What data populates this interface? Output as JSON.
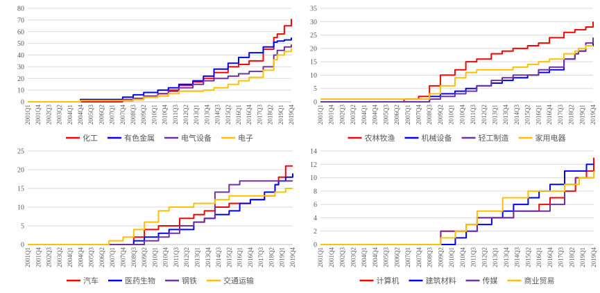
{
  "x_labels": [
    "2001Q1",
    "2001Q4",
    "2002Q3",
    "2003Q2",
    "2004Q1",
    "2004Q4",
    "2005Q3",
    "2006Q2",
    "2007Q1",
    "2007Q4",
    "2008Q3",
    "2009Q2",
    "2010Q1",
    "2010Q4",
    "2011Q3",
    "2012Q2",
    "2013Q1",
    "2013Q4",
    "2014Q3",
    "2015Q2",
    "2016Q1",
    "2016Q4",
    "2017Q3",
    "2018Q2",
    "2019Q1",
    "2019Q4"
  ],
  "chart_data": [
    {
      "type": "line",
      "ylim": [
        0,
        80
      ],
      "yticks": [
        0,
        10,
        20,
        30,
        40,
        50,
        60,
        70,
        80
      ],
      "x": [
        0,
        15,
        20,
        23,
        27,
        30,
        33,
        37,
        40,
        43,
        47,
        50,
        53,
        57,
        60,
        63,
        67,
        70,
        71,
        73,
        75
      ],
      "series": [
        {
          "name": "化工",
          "color": "#ff0000",
          "values": [
            0,
            0,
            0,
            0,
            1,
            2,
            4,
            7,
            10,
            14,
            17,
            20,
            25,
            30,
            32,
            35,
            45,
            55,
            58,
            65,
            71
          ]
        },
        {
          "name": "有色金属",
          "color": "#0000ff",
          "values": [
            0,
            2,
            2,
            2,
            4,
            6,
            8,
            10,
            12,
            15,
            18,
            22,
            28,
            33,
            38,
            42,
            47,
            51,
            52,
            53,
            55
          ]
        },
        {
          "name": "电气设备",
          "color": "#7030a0",
          "values": [
            0,
            1,
            1,
            1,
            2,
            3,
            5,
            7,
            9,
            12,
            15,
            18,
            20,
            22,
            24,
            26,
            30,
            40,
            44,
            47,
            49
          ]
        },
        {
          "name": "电子",
          "color": "#ffc000",
          "values": [
            0,
            1,
            1,
            1,
            1,
            2,
            4,
            5,
            7,
            9,
            9,
            10,
            12,
            15,
            18,
            21,
            27,
            36,
            40,
            43,
            46
          ]
        }
      ]
    },
    {
      "type": "line",
      "ylim": [
        0,
        35
      ],
      "yticks": [
        0,
        5,
        10,
        15,
        20,
        25,
        30,
        35
      ],
      "x": [
        0,
        23,
        27,
        30,
        33,
        37,
        40,
        43,
        47,
        50,
        53,
        57,
        60,
        63,
        67,
        70,
        71,
        73,
        75
      ],
      "series": [
        {
          "name": "农林牧渔",
          "color": "#ff0000",
          "values": [
            0,
            1,
            2,
            6,
            10,
            12,
            15,
            16,
            18,
            19,
            20,
            21,
            22,
            24,
            26,
            27,
            27,
            28,
            30
          ]
        },
        {
          "name": "机械设备",
          "color": "#0000ff",
          "values": [
            0,
            0,
            0,
            2,
            3,
            4,
            5,
            6,
            7,
            8,
            9,
            10,
            11,
            12,
            16,
            18,
            19,
            21,
            24
          ]
        },
        {
          "name": "轻工制造",
          "color": "#7030a0",
          "values": [
            0,
            0,
            0,
            1,
            2,
            3,
            4,
            6,
            8,
            9,
            10,
            10,
            12,
            13,
            16,
            18,
            19,
            22,
            24
          ]
        },
        {
          "name": "家用电器",
          "color": "#ffc000",
          "values": [
            1,
            1,
            1,
            3,
            6,
            9,
            11,
            12,
            12,
            12,
            13,
            14,
            15,
            16,
            18,
            19,
            20,
            21,
            21
          ]
        }
      ]
    },
    {
      "type": "line",
      "ylim": [
        0,
        25
      ],
      "yticks": [
        0,
        5,
        10,
        15,
        20,
        25
      ],
      "x": [
        0,
        20,
        23,
        27,
        30,
        33,
        37,
        40,
        43,
        47,
        50,
        53,
        57,
        60,
        63,
        67,
        70,
        71,
        73,
        75
      ],
      "series": [
        {
          "name": "汽车",
          "color": "#ff0000",
          "values": [
            0,
            0,
            0,
            0,
            2,
            4,
            5,
            5,
            7,
            8,
            9,
            10,
            11,
            11,
            12,
            13,
            16,
            18,
            21,
            21
          ]
        },
        {
          "name": "医药生物",
          "color": "#0000ff",
          "values": [
            0,
            0,
            0,
            0,
            1,
            2,
            3,
            4,
            4,
            6,
            7,
            8,
            9,
            11,
            12,
            14,
            16,
            17,
            18,
            19
          ]
        },
        {
          "name": "钢铁",
          "color": "#7030a0",
          "values": [
            0,
            0,
            0,
            0,
            0,
            1,
            2,
            3,
            5,
            6,
            7,
            14,
            16,
            17,
            17,
            17,
            17,
            17,
            17,
            17
          ]
        },
        {
          "name": "交通运输",
          "color": "#ffc000",
          "values": [
            0,
            0,
            1,
            2,
            4,
            6,
            9,
            10,
            10,
            11,
            11,
            12,
            13,
            13,
            13,
            13,
            14,
            14,
            15,
            15
          ]
        }
      ]
    },
    {
      "type": "line",
      "ylim": [
        0,
        14
      ],
      "yticks": [
        0,
        2,
        4,
        6,
        8,
        10,
        12,
        14
      ],
      "x": [
        0,
        30,
        33,
        37,
        40,
        43,
        47,
        50,
        53,
        57,
        60,
        63,
        67,
        70,
        71,
        73,
        75
      ],
      "series": [
        {
          "name": "计算机",
          "color": "#ff0000",
          "values": [
            0,
            0,
            2,
            2,
            3,
            4,
            4,
            4,
            5,
            5,
            6,
            7,
            8,
            10,
            10,
            11,
            13
          ]
        },
        {
          "name": "建筑材料",
          "color": "#0000ff",
          "values": [
            0,
            0,
            0,
            1,
            2,
            3,
            4,
            5,
            6,
            7,
            8,
            9,
            11,
            11,
            11,
            12,
            12
          ]
        },
        {
          "name": "传媒",
          "color": "#7030a0",
          "values": [
            0,
            0,
            2,
            2,
            2,
            4,
            4,
            4,
            5,
            5,
            5,
            6,
            9,
            10,
            10,
            10,
            11
          ]
        },
        {
          "name": "商业贸易",
          "color": "#ffc000",
          "values": [
            0,
            0,
            1,
            2,
            3,
            5,
            5,
            7,
            7,
            8,
            8,
            8,
            9,
            9,
            10,
            10,
            11
          ]
        }
      ]
    }
  ]
}
